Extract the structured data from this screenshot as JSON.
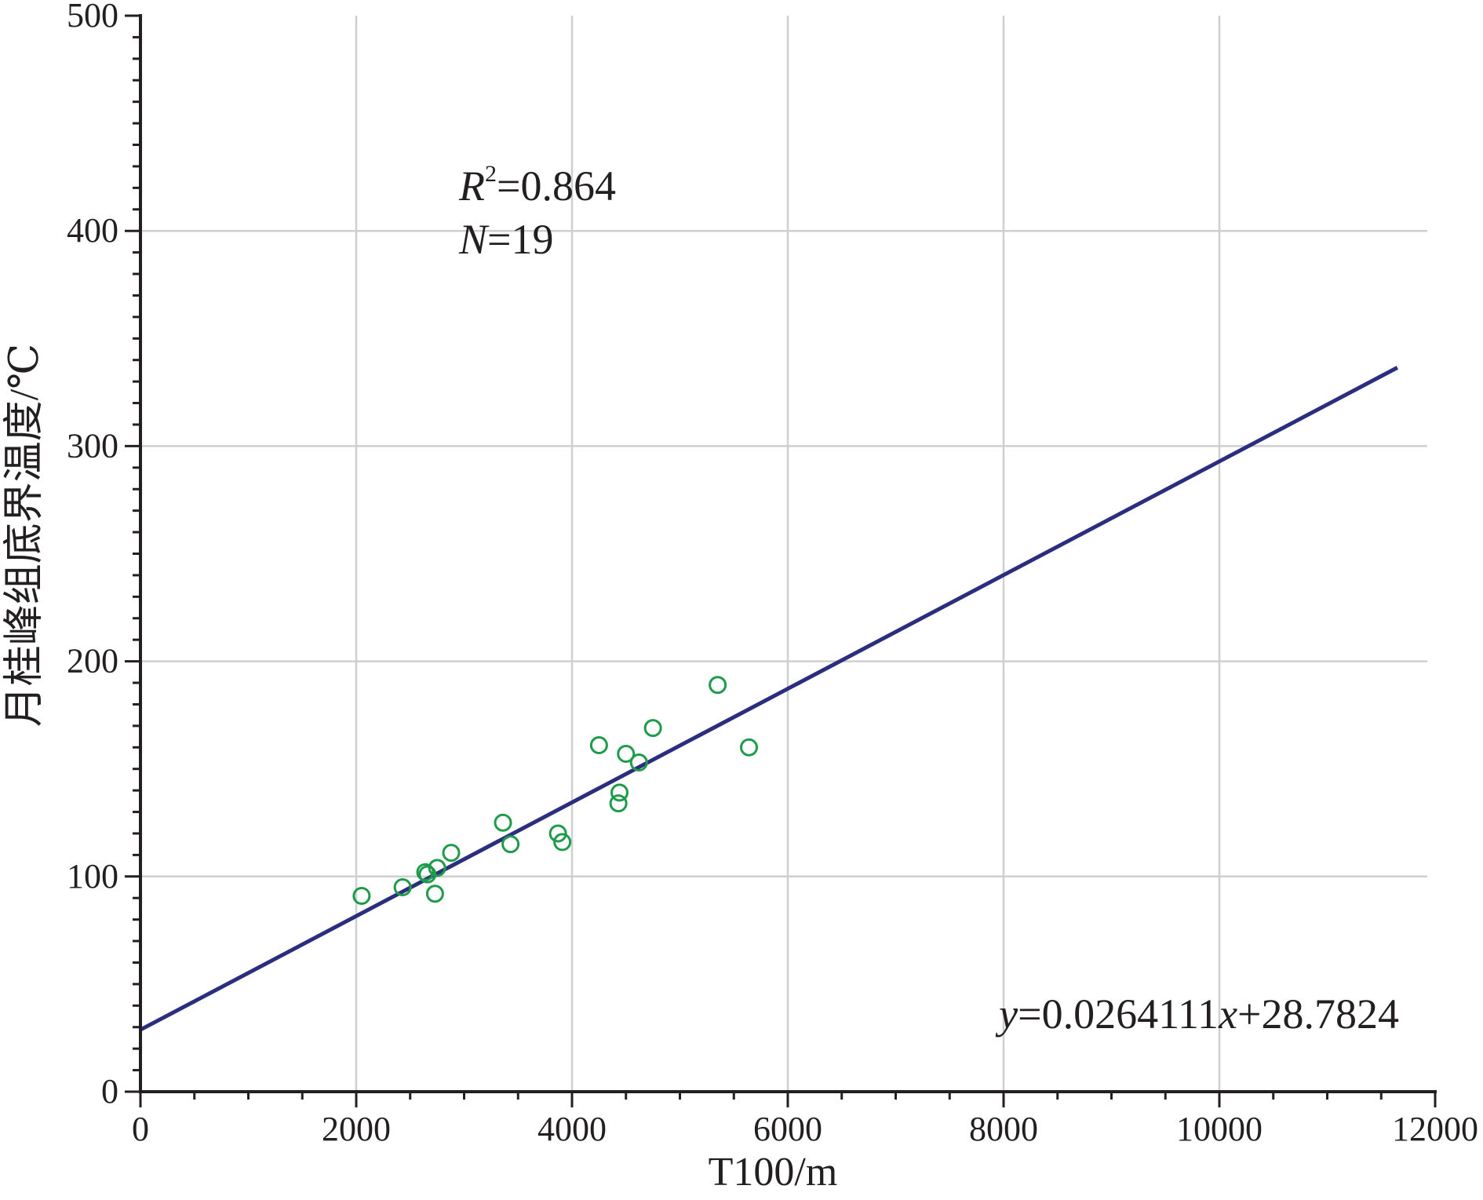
{
  "chart_data": {
    "type": "scatter",
    "xlabel": "T100/m",
    "ylabel": "月桂峰组底界温度/℃",
    "xlim": [
      0,
      12000
    ],
    "ylim": [
      0,
      500
    ],
    "x_ticks": [
      "0",
      "2000",
      "4000",
      "6000",
      "8000",
      "10000",
      "12000"
    ],
    "y_ticks": [
      "0",
      "100",
      "200",
      "300",
      "400",
      "500"
    ],
    "grid": true,
    "points": [
      {
        "x": 2050,
        "y": 91
      },
      {
        "x": 2430,
        "y": 95
      },
      {
        "x": 2640,
        "y": 102
      },
      {
        "x": 2660,
        "y": 101
      },
      {
        "x": 2730,
        "y": 92
      },
      {
        "x": 2750,
        "y": 104
      },
      {
        "x": 2880,
        "y": 111
      },
      {
        "x": 3360,
        "y": 125
      },
      {
        "x": 3430,
        "y": 115
      },
      {
        "x": 3870,
        "y": 120
      },
      {
        "x": 3910,
        "y": 116
      },
      {
        "x": 4250,
        "y": 161
      },
      {
        "x": 4430,
        "y": 134
      },
      {
        "x": 4440,
        "y": 139
      },
      {
        "x": 4500,
        "y": 157
      },
      {
        "x": 4620,
        "y": 153
      },
      {
        "x": 4750,
        "y": 169
      },
      {
        "x": 5350,
        "y": 189
      },
      {
        "x": 5640,
        "y": 160
      }
    ],
    "fit": {
      "slope": 0.0264111,
      "intercept": 28.7824,
      "x_range": [
        0,
        11650
      ]
    },
    "annotations": {
      "r2_label": "R",
      "r2_sup": "2",
      "r2_value": "=0.864",
      "n_label": "N",
      "n_value": "=19",
      "eq_y": "y",
      "eq_mid": "=0.0264111",
      "eq_x": "x",
      "eq_end": "+28.7824"
    },
    "colors": {
      "points": "#1e9b4a",
      "fit": "#2b2d7e",
      "grid": "#cfcfcf",
      "axis": "#231f20"
    }
  }
}
